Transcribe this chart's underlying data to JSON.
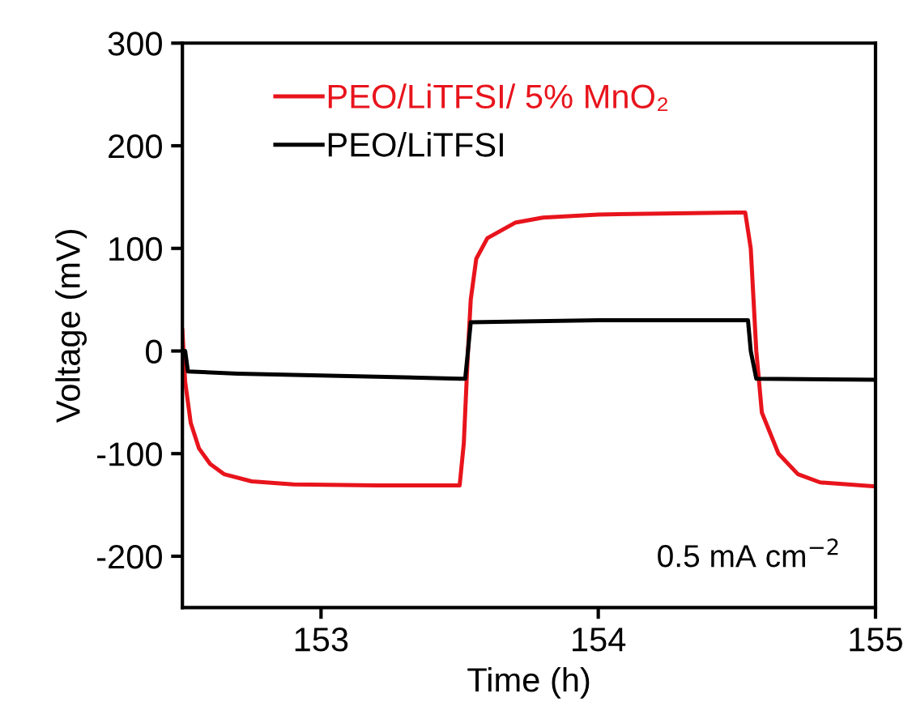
{
  "chart_data": {
    "type": "line",
    "xlabel": "Time (h)",
    "ylabel": "Voltage (mV)",
    "xlim": [
      152.5,
      155
    ],
    "xticks": [
      153,
      154,
      155
    ],
    "ylim": [
      -250,
      300
    ],
    "yticks": [
      {
        "value": -200,
        "label": "-200"
      },
      {
        "value": -100,
        "label": "-100"
      },
      0,
      100,
      200,
      300
    ],
    "legend": "top left",
    "grid": false,
    "marker": "none",
    "line_style": "solid",
    "annotations": [
      "0.5 mA cm$^{−2}$"
    ],
    "series": [
      {
        "name": "PEO/LiTFSI/ 5% MnO₂",
        "color": "#e8141c",
        "x": [
          152.5,
          152.51,
          152.53,
          152.56,
          152.6,
          152.65,
          152.75,
          152.9,
          153.2,
          153.5,
          153.515,
          153.525,
          153.53,
          153.54,
          153.56,
          153.6,
          153.7,
          153.8,
          154.0,
          154.5,
          154.53,
          154.55,
          154.57,
          154.59,
          154.65,
          154.72,
          154.8,
          155.0
        ],
        "values": [
          20,
          -30,
          -70,
          -95,
          -110,
          -120,
          -127,
          -130,
          -131,
          -131,
          -90,
          -30,
          0,
          50,
          90,
          110,
          125,
          130,
          133,
          135,
          135,
          100,
          0,
          -60,
          -100,
          -120,
          -128,
          -132
        ]
      },
      {
        "name": "PEO/LiTFSI",
        "color": "#000000",
        "x": [
          152.5,
          152.51,
          152.52,
          152.7,
          153.2,
          153.5,
          153.52,
          153.53,
          153.54,
          154.0,
          154.54,
          154.55,
          154.57,
          155.0
        ],
        "values": [
          0,
          0,
          -20,
          -22,
          -25,
          -27,
          -27,
          0,
          28,
          30,
          30,
          0,
          -27,
          -28
        ]
      }
    ]
  }
}
